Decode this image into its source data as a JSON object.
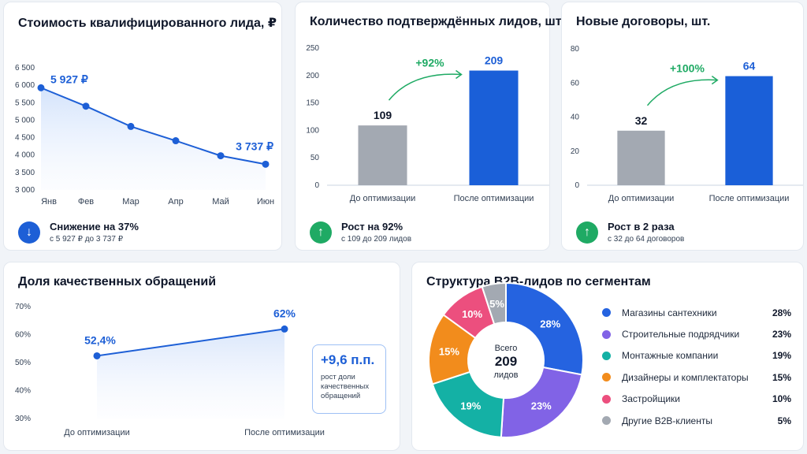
{
  "cards": {
    "cost": {
      "title": "Стоимость квалифицированного лида, ₽",
      "summary_main": "Снижение на 37%",
      "summary_sub": "с 5 927 ₽ до 3 737 ₽",
      "first_label": "5 927 ₽",
      "last_label": "3 737 ₽"
    },
    "leads": {
      "title": "Количество подтверждённых лидов, шт.",
      "growth_label": "+92%",
      "summary_main": "Рост на 92%",
      "summary_sub": "с 109 до 209 лидов"
    },
    "contracts": {
      "title": "Новые договоры, шт.",
      "growth_label": "+100%",
      "summary_main": "Рост в 2 раза",
      "summary_sub": "с 32 до 64 договоров"
    },
    "share": {
      "title": "Доля качественных обращений",
      "callout_value": "+9,6 п.п.",
      "callout_text": "рост доли качественных обращений"
    },
    "structure": {
      "title": "Структура B2B-лидов по сегментам",
      "center_top": "Всего",
      "center_value": "209",
      "center_bottom": "лидов"
    }
  },
  "chart_data": [
    {
      "type": "line",
      "title": "Стоимость квалифицированного лида, ₽",
      "categories": [
        "Янв",
        "Фев",
        "Мар",
        "Апр",
        "Май",
        "Июн"
      ],
      "values": [
        5927,
        5400,
        4820,
        4410,
        3980,
        3737
      ],
      "yticks": [
        "3 000",
        "3 500",
        "4 000",
        "4 500",
        "5 000",
        "5 500",
        "6 000",
        "6 500"
      ],
      "ylim": [
        3000,
        6500
      ],
      "color": "#1d5fd6"
    },
    {
      "type": "bar",
      "title": "Количество подтверждённых лидов, шт.",
      "categories": [
        "До оптимизации",
        "После оптимизации"
      ],
      "values": [
        109,
        209
      ],
      "yticks": [
        0,
        50,
        100,
        150,
        200,
        250
      ],
      "ylim": [
        0,
        250
      ],
      "colors": [
        "#a3a9b2",
        "#1a5fd8"
      ]
    },
    {
      "type": "bar",
      "title": "Новые договоры, шт.",
      "categories": [
        "До оптимизации",
        "После оптимизации"
      ],
      "values": [
        32,
        64
      ],
      "yticks": [
        0,
        20,
        40,
        60,
        80
      ],
      "ylim": [
        0,
        80
      ],
      "colors": [
        "#a3a9b2",
        "#1a5fd8"
      ]
    },
    {
      "type": "line",
      "title": "Доля качественных обращений",
      "categories": [
        "До оптимизации",
        "После оптимизации"
      ],
      "values": [
        52.4,
        62
      ],
      "value_labels": [
        "52,4%",
        "62%"
      ],
      "yticks": [
        "30%",
        "40%",
        "50%",
        "60%",
        "70%"
      ],
      "ylim": [
        30,
        70
      ],
      "color": "#1d5fd6"
    },
    {
      "type": "pie",
      "title": "Структура B2B-лидов по сегментам",
      "slices": [
        {
          "name": "Магазины сантехники",
          "value": 28,
          "label": "28%",
          "color": "#2563e0"
        },
        {
          "name": "Строительные подрядчики",
          "value": 23,
          "label": "23%",
          "color": "#8163e6"
        },
        {
          "name": "Монтажные компании",
          "value": 19,
          "label": "19%",
          "color": "#14b1a5"
        },
        {
          "name": "Дизайнеры и комплектаторы",
          "value": 15,
          "label": "15%",
          "color": "#f28c1c"
        },
        {
          "name": "Застройщики",
          "value": 10,
          "label": "10%",
          "color": "#ec4f7e"
        },
        {
          "name": "Другие B2B-клиенты",
          "value": 5,
          "label": "5%",
          "color": "#a3a9b2"
        }
      ]
    }
  ],
  "colors": {
    "accent": "#1d5fd6",
    "green": "#1faa64",
    "grey_bar": "#a3a9b2",
    "blue_bar": "#1a5fd8"
  },
  "icons": {
    "down": "arrow-down-icon",
    "up": "arrow-up-icon"
  }
}
